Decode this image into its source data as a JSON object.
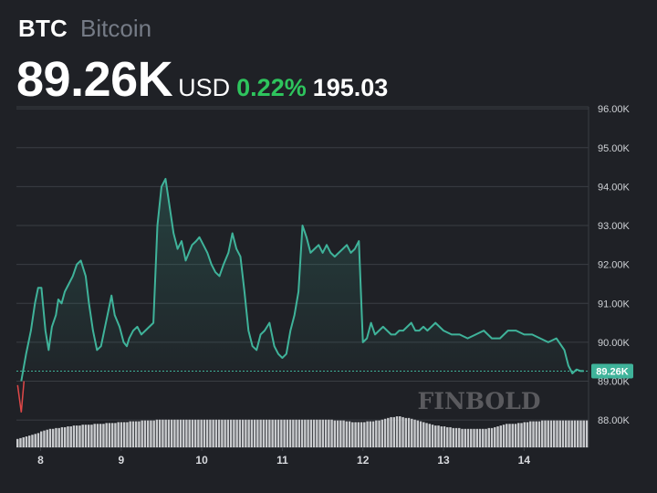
{
  "header": {
    "ticker": "BTC",
    "name": "Bitcoin",
    "price": "89.26K",
    "currency": "USD",
    "change_pct": "0.22%",
    "change_abs": "195.03"
  },
  "colors": {
    "background": "#1f2126",
    "line": "#3fb39a",
    "positive": "#2ec45d",
    "negative": "#e04848",
    "volume": "#c9cbce",
    "grid": "#3a3d43"
  },
  "watermark": "FINBOLD",
  "chart_data": {
    "type": "line",
    "title": "",
    "xlabel": "",
    "ylabel": "",
    "x_ticks": [
      "8",
      "9",
      "10",
      "11",
      "12",
      "13",
      "14"
    ],
    "x_tick_days": [
      8,
      9,
      10,
      11,
      12,
      13,
      14
    ],
    "xlim": [
      7.7,
      14.8
    ],
    "y_ticks": [
      "88.00K",
      "89.00K",
      "90.00K",
      "91.00K",
      "92.00K",
      "93.00K",
      "94.00K",
      "95.00K",
      "96.00K"
    ],
    "y_tick_values": [
      88000,
      89000,
      90000,
      91000,
      92000,
      93000,
      94000,
      95000,
      96000
    ],
    "ylim": [
      87300,
      96050
    ],
    "last_value_label": "89.26K",
    "grid": true,
    "series": [
      {
        "x": [
          7.76,
          7.82,
          7.88,
          7.93,
          7.97,
          8.01,
          8.06,
          8.1,
          8.14,
          8.19,
          8.22,
          8.26,
          8.3,
          8.35,
          8.4,
          8.45,
          8.5,
          8.56,
          8.6,
          8.65,
          8.7,
          8.75,
          8.8,
          8.84,
          8.88,
          8.92,
          8.98,
          9.03,
          9.07,
          9.1,
          9.15,
          9.2,
          9.25,
          9.3,
          9.35,
          9.4,
          9.45,
          9.5,
          9.55,
          9.6,
          9.65,
          9.7,
          9.75,
          9.8,
          9.84,
          9.88,
          9.93,
          9.97,
          10.02,
          10.07,
          10.12,
          10.17,
          10.22,
          10.27,
          10.33,
          10.38,
          10.43,
          10.48,
          10.53,
          10.58,
          10.63,
          10.68,
          10.73,
          10.78,
          10.84,
          10.9,
          10.95,
          11.0,
          11.05,
          11.1,
          11.15,
          11.2,
          11.25,
          11.3,
          11.35,
          11.4,
          11.45,
          11.5,
          11.55,
          11.6,
          11.65,
          11.7,
          11.75,
          11.8,
          11.85,
          11.9,
          11.95,
          12.0,
          12.05,
          12.1,
          12.15,
          12.2,
          12.25,
          12.3,
          12.35,
          12.4,
          12.45,
          12.5,
          12.55,
          12.6,
          12.65,
          12.7,
          12.75,
          12.8,
          12.85,
          12.9,
          12.95,
          13.0,
          13.1,
          13.2,
          13.3,
          13.4,
          13.5,
          13.55,
          13.6,
          13.7,
          13.8,
          13.9,
          14.0,
          14.1,
          14.2,
          14.3,
          14.4,
          14.5,
          14.55,
          14.6,
          14.65,
          14.7,
          14.74
        ],
        "values": [
          89000,
          89700,
          90300,
          91000,
          91400,
          91400,
          90300,
          89800,
          90400,
          90700,
          91100,
          91000,
          91300,
          91500,
          91700,
          92000,
          92100,
          91700,
          91000,
          90300,
          89800,
          89900,
          90400,
          90800,
          91200,
          90700,
          90400,
          90000,
          89900,
          90100,
          90300,
          90400,
          90200,
          90300,
          90400,
          90500,
          93000,
          94000,
          94200,
          93500,
          92800,
          92400,
          92600,
          92100,
          92300,
          92500,
          92600,
          92700,
          92500,
          92300,
          92000,
          91800,
          91700,
          92000,
          92300,
          92800,
          92400,
          92200,
          91300,
          90300,
          89900,
          89800,
          90200,
          90300,
          90500,
          89900,
          89700,
          89600,
          89700,
          90300,
          90700,
          91300,
          93000,
          92700,
          92300,
          92400,
          92500,
          92300,
          92500,
          92300,
          92200,
          92300,
          92400,
          92500,
          92300,
          92400,
          92600,
          90000,
          90100,
          90500,
          90200,
          90300,
          90400,
          90300,
          90200,
          90200,
          90300,
          90300,
          90400,
          90500,
          90300,
          90300,
          90400,
          90300,
          90400,
          90500,
          90400,
          90300,
          90200,
          90200,
          90100,
          90200,
          90300,
          90200,
          90100,
          90100,
          90300,
          90300,
          90200,
          90200,
          90100,
          90000,
          90100,
          89800,
          89400,
          89200,
          89300,
          89260,
          89260
        ]
      }
    ],
    "volume": [
      1.0,
      1.1,
      1.2,
      1.3,
      1.4,
      1.5,
      1.6,
      1.7,
      1.9,
      2.0,
      2.1,
      2.2,
      2.2,
      2.3,
      2.3,
      2.4,
      2.4,
      2.5,
      2.5,
      2.6,
      2.6,
      2.6,
      2.7,
      2.7,
      2.7,
      2.7,
      2.8,
      2.8,
      2.8,
      2.8,
      2.9,
      2.9,
      2.9,
      2.9,
      3.0,
      3.0,
      3.0,
      3.0,
      3.1,
      3.1,
      3.1,
      3.1,
      3.2,
      3.2,
      3.2,
      3.2,
      3.2,
      3.3,
      3.3,
      3.3,
      3.3,
      3.3,
      3.3,
      3.3,
      3.3,
      3.3,
      3.3,
      3.3,
      3.3,
      3.3,
      3.3,
      3.3,
      3.3,
      3.3,
      3.3,
      3.3,
      3.3,
      3.3,
      3.3,
      3.3,
      3.3,
      3.3,
      3.3,
      3.3,
      3.3,
      3.3,
      3.3,
      3.3,
      3.3,
      3.3,
      3.3,
      3.3,
      3.3,
      3.3,
      3.3,
      3.3,
      3.3,
      3.3,
      3.3,
      3.3,
      3.3,
      3.3,
      3.3,
      3.3,
      3.3,
      3.3,
      3.3,
      3.3,
      3.3,
      3.3,
      3.3,
      3.3,
      3.3,
      3.3,
      3.3,
      3.3,
      3.3,
      3.2,
      3.2,
      3.2,
      3.2,
      3.1,
      3.1,
      3.0,
      3.0,
      3.0,
      3.0,
      3.0,
      3.1,
      3.1,
      3.1,
      3.2,
      3.2,
      3.3,
      3.4,
      3.5,
      3.6,
      3.6,
      3.7,
      3.7,
      3.6,
      3.5,
      3.5,
      3.4,
      3.3,
      3.2,
      3.1,
      3.0,
      2.9,
      2.8,
      2.7,
      2.6,
      2.6,
      2.5,
      2.5,
      2.4,
      2.4,
      2.3,
      2.3,
      2.3,
      2.2,
      2.2,
      2.2,
      2.2,
      2.2,
      2.2,
      2.2,
      2.2,
      2.2,
      2.3,
      2.3,
      2.4,
      2.5,
      2.6,
      2.7,
      2.8,
      2.8,
      2.8,
      2.8,
      2.9,
      2.9,
      3.0,
      3.0,
      3.1,
      3.1,
      3.1,
      3.1,
      3.2,
      3.2,
      3.2,
      3.2,
      3.2,
      3.2,
      3.2,
      3.2,
      3.2,
      3.2,
      3.2,
      3.2,
      3.2,
      3.2,
      3.2,
      3.2
    ]
  }
}
